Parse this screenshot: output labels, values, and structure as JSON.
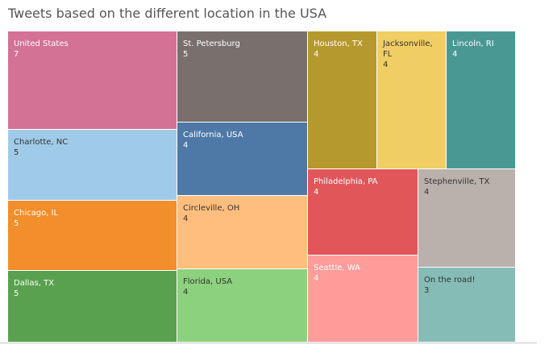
{
  "chart_data": {
    "type": "treemap",
    "title": "Tweets based on the different location in the USA",
    "series": [
      {
        "name": "United States",
        "value": 7,
        "color": "#D37295"
      },
      {
        "name": "St. Petersburg",
        "value": 5,
        "color": "#79706E"
      },
      {
        "name": "Charlotte, NC",
        "value": 5,
        "color": "#A0CBE8"
      },
      {
        "name": "Chicago, IL",
        "value": 5,
        "color": "#F28E2B"
      },
      {
        "name": "Dallas, TX",
        "value": 5,
        "color": "#59A14F"
      },
      {
        "name": "California, USA",
        "value": 4,
        "color": "#4E79A7"
      },
      {
        "name": "Circleville, OH",
        "value": 4,
        "color": "#FFBE7D"
      },
      {
        "name": "Florida, USA",
        "value": 4,
        "color": "#8CD17D"
      },
      {
        "name": "Houston, TX",
        "value": 4,
        "color": "#B6992D"
      },
      {
        "name": "Jacksonville,\nFL",
        "value": 4,
        "color": "#F1CE63"
      },
      {
        "name": "Lincoln, RI",
        "value": 4,
        "color": "#499894"
      },
      {
        "name": "Philadelphia, PA",
        "value": 4,
        "color": "#E15759"
      },
      {
        "name": "Stephenville, TX",
        "value": 4,
        "color": "#BAB0AC"
      },
      {
        "name": "Seattle, WA",
        "value": 4,
        "color": "#FF9D9A"
      },
      {
        "name": "On the road!",
        "value": 3,
        "color": "#86BCB6"
      }
    ]
  }
}
